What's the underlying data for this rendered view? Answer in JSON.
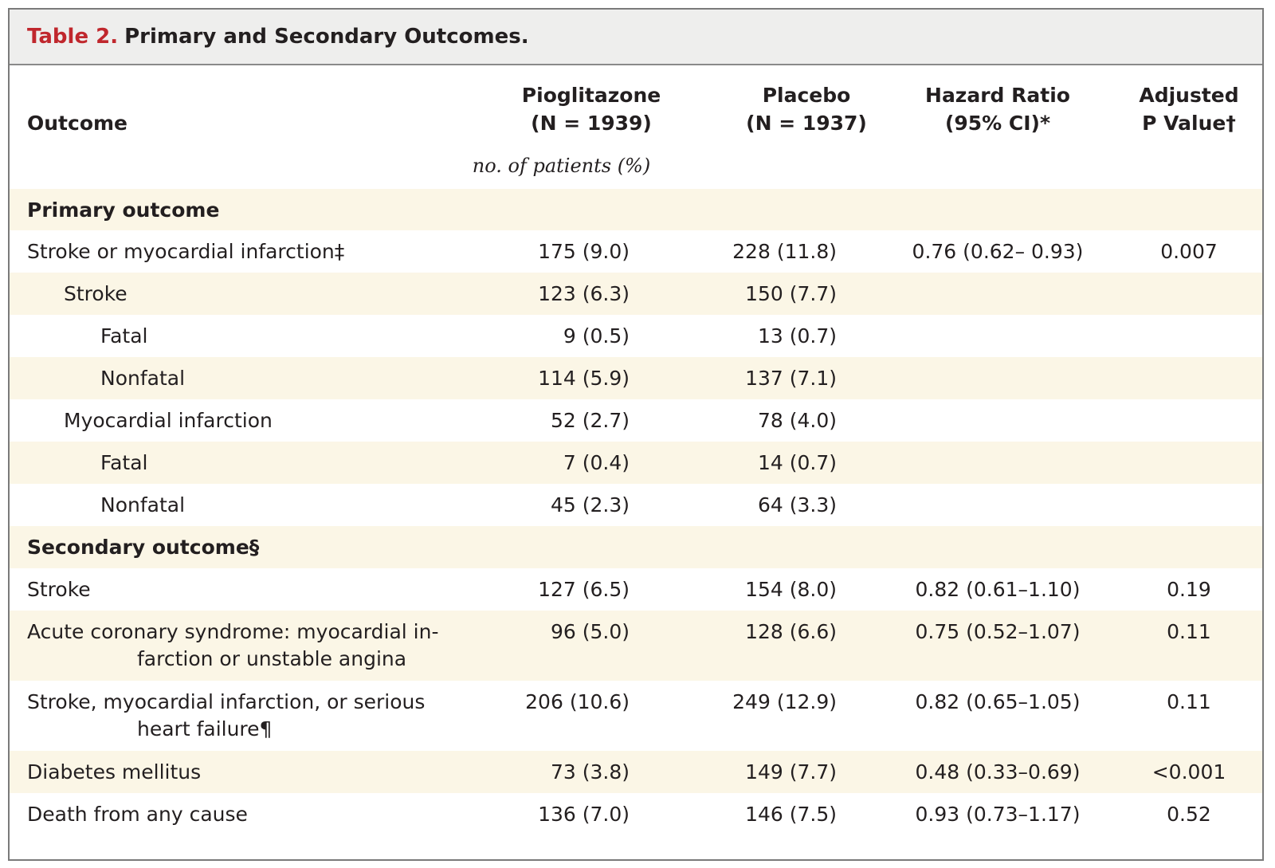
{
  "table": {
    "label": "Table 2.",
    "title": "Primary and Secondary Outcomes.",
    "headers": {
      "outcome": "Outcome",
      "pio_line1": "Pioglitazone",
      "pio_line2": "(N = 1939)",
      "pla_line1": "Placebo",
      "pla_line2": "(N = 1937)",
      "hr_line1": "Hazard Ratio",
      "hr_line2": "(95% CI)*",
      "p_line1": "Adjusted",
      "p_line2": "P Value†",
      "units": "no. of patients (%)"
    },
    "rows": [
      {
        "outcome": "Primary outcome",
        "section": true
      },
      {
        "outcome": "Stroke or myocardial infarction‡",
        "pio": "175 (9.0)",
        "pla": "228 (11.8)",
        "hr": "0.76 (0.62– 0.93)",
        "p": "0.007"
      },
      {
        "outcome": "Stroke",
        "pio": "123 (6.3)",
        "pla": "150 (7.7)",
        "hr": "",
        "p": ""
      },
      {
        "outcome": "Fatal",
        "pio": "9 (0.5)",
        "pla": "13 (0.7)",
        "hr": "",
        "p": ""
      },
      {
        "outcome": "Nonfatal",
        "pio": "114 (5.9)",
        "pla": "137 (7.1)",
        "hr": "",
        "p": ""
      },
      {
        "outcome": "Myocardial infarction",
        "pio": "52 (2.7)",
        "pla": "78 (4.0)",
        "hr": "",
        "p": ""
      },
      {
        "outcome": "Fatal",
        "pio": "7 (0.4)",
        "pla": "14 (0.7)",
        "hr": "",
        "p": ""
      },
      {
        "outcome": "Nonfatal",
        "pio": "45 (2.3)",
        "pla": "64 (3.3)",
        "hr": "",
        "p": ""
      },
      {
        "outcome": "Secondary outcome§",
        "section": true
      },
      {
        "outcome": "Stroke",
        "pio": "127 (6.5)",
        "pla": "154 (8.0)",
        "hr": "0.82 (0.61–1.10)",
        "p": "0.19"
      },
      {
        "outcome": "Acute coronary syndrome: myocardial in-",
        "outcome_cont": "farction or unstable angina",
        "pio": "96 (5.0)",
        "pla": "128 (6.6)",
        "hr": "0.75 (0.52–1.07)",
        "p": "0.11"
      },
      {
        "outcome": "Stroke, myocardial infarction, or serious",
        "outcome_cont": "heart failure¶",
        "pio": "206 (10.6)",
        "pla": "249 (12.9)",
        "hr": "0.82 (0.65–1.05)",
        "p": "0.11"
      },
      {
        "outcome": "Diabetes mellitus",
        "pio": "73 (3.8)",
        "pla": "149 (7.7)",
        "hr": "0.48 (0.33–0.69)",
        "p": "<0.001"
      },
      {
        "outcome": "Death from any cause",
        "pio": "136 (7.0)",
        "pla": "146 (7.5)",
        "hr": "0.93 (0.73–1.17)",
        "p": "0.52"
      }
    ]
  }
}
